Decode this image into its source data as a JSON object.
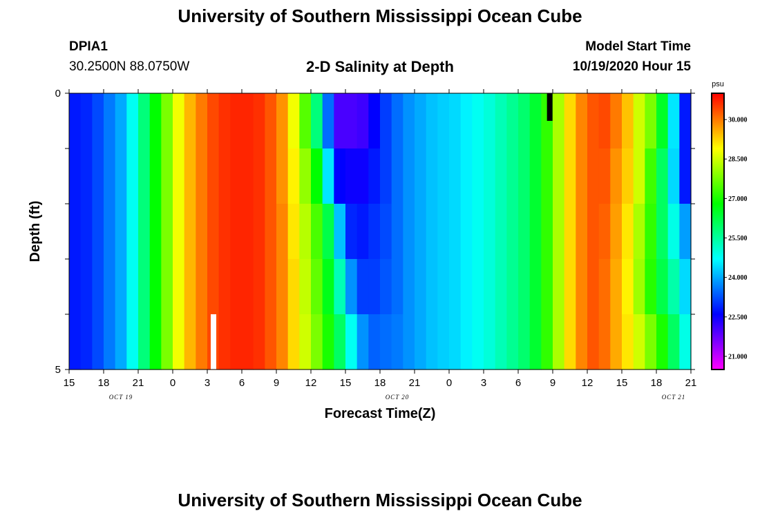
{
  "page": {
    "title_top": "University of Southern Mississippi Ocean Cube",
    "title_bottom": "University of Southern Mississippi Ocean Cube",
    "station_id": "DPIA1",
    "station_coords": "30.2500N 88.0750W",
    "model_start_label": "Model Start Time",
    "model_start_value": "10/19/2020 Hour 15"
  },
  "chart_data": {
    "type": "heatmap",
    "title": "2-D Salinity at Depth",
    "xlabel": "Forecast Time(Z)",
    "ylabel": "Depth (ft)",
    "x_tick_labels": [
      "15",
      "18",
      "21",
      "0",
      "3",
      "6",
      "9",
      "12",
      "15",
      "18",
      "21",
      "0",
      "3",
      "6",
      "9",
      "12",
      "15",
      "18",
      "21"
    ],
    "x_date_labels": [
      {
        "text": "OCT 19",
        "hour_index": 4.5
      },
      {
        "text": "OCT 20",
        "hour_index": 28.5
      },
      {
        "text": "OCT 21",
        "hour_index": 52.5
      }
    ],
    "y_tick_labels": [
      "0",
      "5"
    ],
    "y_range": [
      0,
      5
    ],
    "x_range_hours": [
      0,
      54
    ],
    "colorbar": {
      "unit": "psu",
      "labels": [
        "30.000",
        "28.500",
        "27.000",
        "25.500",
        "24.000",
        "22.500",
        "21.000"
      ],
      "label_values": [
        30.0,
        28.5,
        27.0,
        25.5,
        24.0,
        22.5,
        21.0
      ],
      "min": 20.5,
      "max": 31.0
    },
    "depth_layers": 5,
    "hours": 54,
    "rows": [
      [
        22.8,
        22.9,
        23.2,
        23.6,
        24.0,
        24.8,
        25.8,
        26.8,
        27.8,
        28.8,
        29.5,
        30.0,
        30.4,
        30.6,
        30.7,
        30.7,
        30.6,
        30.3,
        29.8,
        28.8,
        27.5,
        25.8,
        23.5,
        22.0,
        22.0,
        22.1,
        22.6,
        23.1,
        23.5,
        23.8,
        24.0,
        24.2,
        24.3,
        24.4,
        24.6,
        24.8,
        25.0,
        25.3,
        25.6,
        25.9,
        26.4,
        27.2,
        28.2,
        29.2,
        29.9,
        30.3,
        30.4,
        30.0,
        29.4,
        28.5,
        27.8,
        26.5,
        24.5,
        22.8
      ],
      [
        22.8,
        22.9,
        23.2,
        23.6,
        24.0,
        24.8,
        25.8,
        26.8,
        27.8,
        28.8,
        29.5,
        30.0,
        30.4,
        30.6,
        30.7,
        30.7,
        30.6,
        30.3,
        29.8,
        29.0,
        28.0,
        26.8,
        24.5,
        22.6,
        22.5,
        22.5,
        22.8,
        23.1,
        23.5,
        23.8,
        24.0,
        24.2,
        24.3,
        24.4,
        24.6,
        24.8,
        25.0,
        25.3,
        25.6,
        25.9,
        26.4,
        27.2,
        28.2,
        29.2,
        29.9,
        30.3,
        30.3,
        29.8,
        29.3,
        28.5,
        27.3,
        26.0,
        24.4,
        22.8
      ],
      [
        22.8,
        22.9,
        23.2,
        23.6,
        24.0,
        24.8,
        25.8,
        26.8,
        27.8,
        28.8,
        29.5,
        30.0,
        30.4,
        30.6,
        30.7,
        30.7,
        30.6,
        30.3,
        29.9,
        29.1,
        28.3,
        27.4,
        26.2,
        24.2,
        22.9,
        22.8,
        23.0,
        23.2,
        23.5,
        23.8,
        24.0,
        24.2,
        24.3,
        24.4,
        24.6,
        24.8,
        25.0,
        25.3,
        25.6,
        25.9,
        26.4,
        27.2,
        28.2,
        29.2,
        29.9,
        30.3,
        30.2,
        29.7,
        29.1,
        28.2,
        27.2,
        26.0,
        24.9,
        23.9
      ],
      [
        22.8,
        22.9,
        23.2,
        23.6,
        24.0,
        24.8,
        25.8,
        26.8,
        27.8,
        28.8,
        29.5,
        30.0,
        30.4,
        30.6,
        30.7,
        30.7,
        30.6,
        30.3,
        29.9,
        29.2,
        28.4,
        27.6,
        26.6,
        25.3,
        23.8,
        23.1,
        23.1,
        23.3,
        23.5,
        23.8,
        24.0,
        24.2,
        24.3,
        24.4,
        24.6,
        24.8,
        25.0,
        25.3,
        25.6,
        25.9,
        26.4,
        27.2,
        28.2,
        29.2,
        29.9,
        30.3,
        30.1,
        29.6,
        29.0,
        28.1,
        27.1,
        26.2,
        25.4,
        24.4
      ],
      [
        22.8,
        22.9,
        23.2,
        23.6,
        24.0,
        24.8,
        25.8,
        26.8,
        27.8,
        28.8,
        29.5,
        30.0,
        30.4,
        30.6,
        30.7,
        30.7,
        30.6,
        30.3,
        29.9,
        29.2,
        28.5,
        27.8,
        27.0,
        26.0,
        24.8,
        23.8,
        23.4,
        23.5,
        23.6,
        23.8,
        24.0,
        24.2,
        24.3,
        24.4,
        24.6,
        24.8,
        25.0,
        25.3,
        25.6,
        25.9,
        26.4,
        27.2,
        28.2,
        29.2,
        29.9,
        30.3,
        30.1,
        29.6,
        29.1,
        28.5,
        27.8,
        27.0,
        26.0,
        24.9
      ]
    ]
  }
}
